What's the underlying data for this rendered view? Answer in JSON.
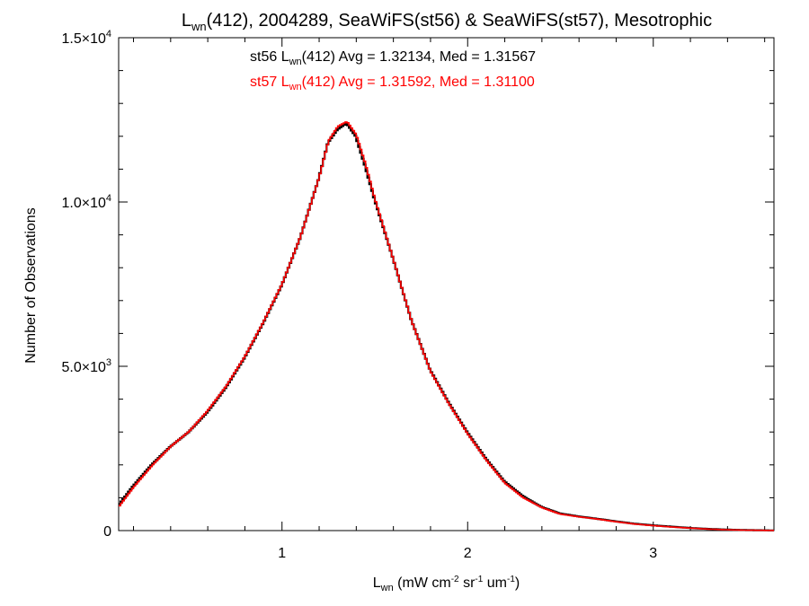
{
  "chart_data": {
    "type": "line",
    "title": {
      "pre": "L",
      "sub": "wn",
      "post": "(412), 2004289, SeaWiFS(st56) & SeaWiFS(st57), Mesotrophic"
    },
    "xlabel": {
      "pre": "L",
      "sub": "wn",
      "mid1": " (mW cm",
      "sup1": "-2",
      "mid2": " sr",
      "sup2": "-1",
      "mid3": " um",
      "sup3": "-1",
      "post": ")"
    },
    "ylabel": "Number of Observations",
    "xlim": [
      0.12,
      3.65
    ],
    "ylim": [
      0,
      15000
    ],
    "x_ticks": [
      {
        "value": 1,
        "label": "1"
      },
      {
        "value": 2,
        "label": "2"
      },
      {
        "value": 3,
        "label": "3"
      }
    ],
    "y_ticks": [
      {
        "value": 0,
        "label": "0"
      },
      {
        "value": 5000,
        "label": "5.0×10",
        "exp": "3"
      },
      {
        "value": 10000,
        "label": "1.0×10",
        "exp": "4"
      },
      {
        "value": 15000,
        "label": "1.5×10",
        "exp": "4"
      }
    ],
    "x": [
      0.12,
      0.2,
      0.3,
      0.4,
      0.5,
      0.6,
      0.7,
      0.8,
      0.9,
      1.0,
      1.1,
      1.2,
      1.25,
      1.3,
      1.35,
      1.4,
      1.45,
      1.5,
      1.6,
      1.7,
      1.8,
      1.9,
      2.0,
      2.1,
      2.2,
      2.3,
      2.4,
      2.5,
      2.6,
      2.7,
      2.8,
      2.9,
      3.0,
      3.1,
      3.2,
      3.3,
      3.4,
      3.5,
      3.65
    ],
    "series": [
      {
        "name": "st56",
        "color": "#000000",
        "values": [
          750,
          1350,
          2000,
          2550,
          3000,
          3600,
          4350,
          5250,
          6300,
          7450,
          8900,
          10700,
          11800,
          12200,
          12400,
          12000,
          11100,
          10100,
          8300,
          6400,
          4900,
          3900,
          3000,
          2200,
          1500,
          1050,
          720,
          520,
          430,
          360,
          280,
          210,
          160,
          120,
          80,
          50,
          30,
          15,
          5
        ]
      },
      {
        "name": "st57",
        "color": "#ff0000",
        "values": [
          720,
          1320,
          1980,
          2560,
          3020,
          3650,
          4400,
          5300,
          6350,
          7500,
          8950,
          10750,
          11850,
          12300,
          12450,
          12050,
          11150,
          10100,
          8250,
          6350,
          4850,
          3850,
          2950,
          2150,
          1450,
          1000,
          700,
          500,
          420,
          350,
          270,
          200,
          150,
          110,
          75,
          45,
          25,
          12,
          4
        ]
      }
    ],
    "annotations": [
      {
        "color": "#000000",
        "pre": "st56 L",
        "sub": "wn",
        "post": "(412) Avg = 1.32134, Med = 1.31567"
      },
      {
        "color": "#ff0000",
        "pre": "st57 L",
        "sub": "wn",
        "post": "(412) Avg = 1.31592, Med = 1.31100"
      }
    ]
  }
}
